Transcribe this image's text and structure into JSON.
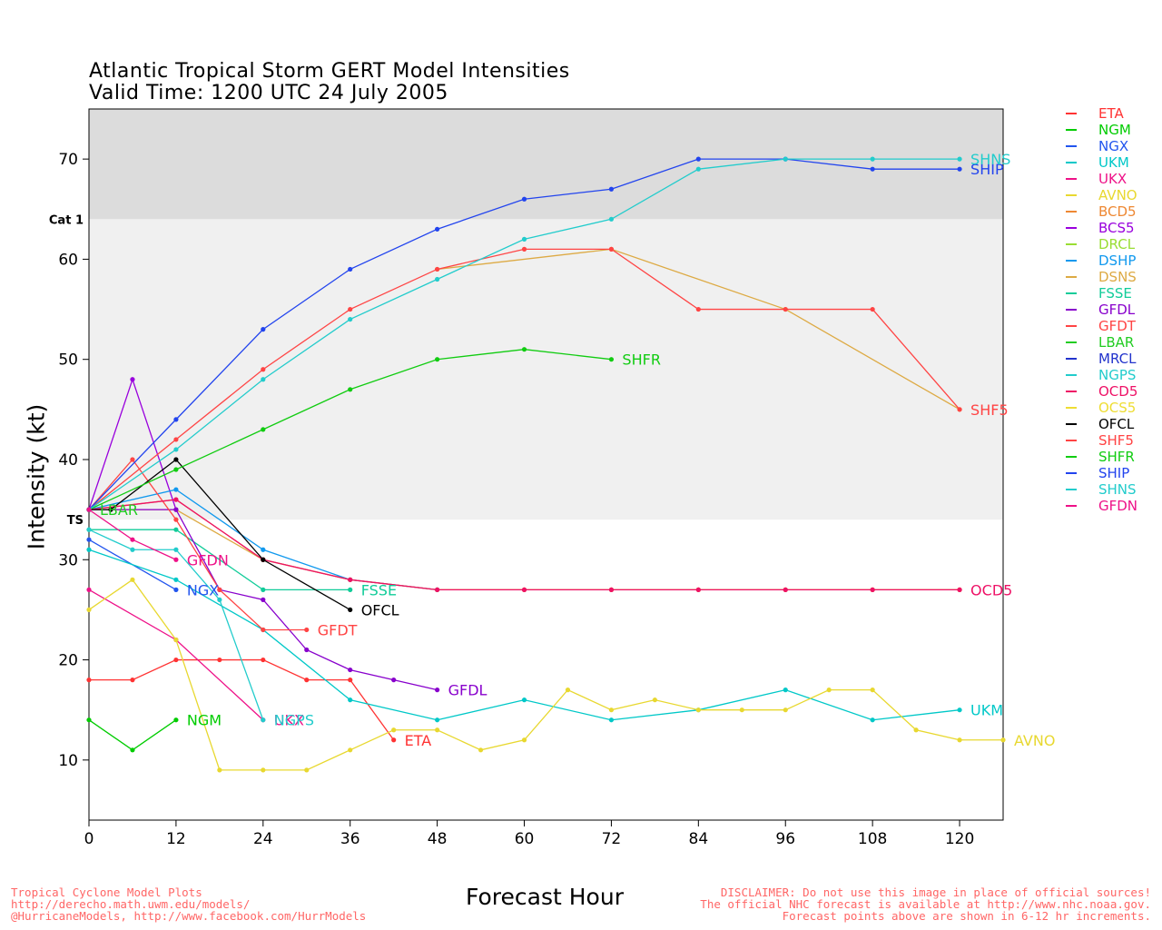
{
  "title": "Atlantic Tropical Storm GERT Model Intensities",
  "subtitle": "Valid Time: 1200 UTC 24 July 2005",
  "footer_left": [
    "Tropical Cyclone Model Plots",
    "http://derecho.math.uwm.edu/models/",
    "@HurricaneModels, http://www.facebook.com/HurrModels"
  ],
  "footer_right": [
    "DISCLAIMER: Do not use this image in place of official sources!",
    "The official NHC forecast is available at http://www.nhc.noaa.gov.",
    "Forecast points above are shown in 6-12 hr increments."
  ],
  "chart_data": {
    "type": "line",
    "xlabel": "Forecast Hour",
    "ylabel": "Intensity (kt)",
    "xlim": [
      0,
      126
    ],
    "ylim": [
      4,
      75
    ],
    "xticks": [
      0,
      12,
      24,
      36,
      48,
      60,
      72,
      84,
      96,
      108,
      120
    ],
    "yticks": [
      10,
      20,
      30,
      40,
      50,
      60,
      70
    ],
    "bands": [
      {
        "label": "TS",
        "from": 34,
        "to": 64,
        "color": "#f0f0f0"
      },
      {
        "label": "Cat 1",
        "from": 64,
        "to": 75,
        "color": "#dcdcdc"
      }
    ],
    "legend_position": "right",
    "series": [
      {
        "name": "ETA",
        "color": "#ff3333",
        "x": [
          0,
          6,
          12,
          18,
          24,
          30,
          36,
          42
        ],
        "y": [
          18,
          18,
          20,
          20,
          20,
          18,
          18,
          12
        ],
        "label": "ETA"
      },
      {
        "name": "NGM",
        "color": "#00cc00",
        "x": [
          0,
          6,
          12
        ],
        "y": [
          14,
          11,
          14
        ],
        "label": "NGM"
      },
      {
        "name": "NGX",
        "color": "#2255ee",
        "x": [
          0,
          12
        ],
        "y": [
          32,
          27
        ],
        "label": "NGX"
      },
      {
        "name": "UKM",
        "color": "#00c8c8",
        "x": [
          0,
          12,
          24,
          36,
          48,
          60,
          72,
          84,
          96,
          108,
          120
        ],
        "y": [
          31,
          28,
          23,
          16,
          14,
          16,
          14,
          15,
          17,
          14,
          15
        ],
        "label": "UKM"
      },
      {
        "name": "UKX",
        "color": "#ee1188",
        "x": [
          0,
          12,
          24
        ],
        "y": [
          27,
          22,
          14
        ],
        "label": "UKX"
      },
      {
        "name": "AVNO",
        "color": "#e8d830",
        "x": [
          0,
          6,
          12,
          18,
          24,
          30,
          36,
          42,
          48,
          54,
          60,
          66,
          72,
          78,
          84,
          90,
          96,
          102,
          108,
          114,
          120,
          126
        ],
        "y": [
          25,
          28,
          22,
          9,
          9,
          9,
          11,
          13,
          13,
          11,
          12,
          17,
          15,
          16,
          15,
          15,
          15,
          17,
          17,
          13,
          12,
          12
        ],
        "label": "AVNO"
      },
      {
        "name": "BCD5",
        "color": "#ee8833",
        "x": [
          0,
          12,
          24,
          36,
          48,
          60,
          72,
          84,
          96,
          108,
          120
        ],
        "y": [
          35,
          36,
          30,
          28,
          27,
          27,
          27,
          27,
          27,
          27,
          27
        ],
        "label": ""
      },
      {
        "name": "BCS5",
        "color": "#9900dd",
        "x": [
          0,
          6,
          12
        ],
        "y": [
          35,
          48,
          35
        ],
        "label": ""
      },
      {
        "name": "DRCL",
        "color": "#99dd33",
        "x": [],
        "y": [],
        "label": ""
      },
      {
        "name": "DSHP",
        "color": "#1199ee",
        "x": [
          0,
          12,
          24,
          36,
          48
        ],
        "y": [
          35,
          37,
          31,
          28,
          27
        ],
        "label": ""
      },
      {
        "name": "DSNS",
        "color": "#ddaa44",
        "x": [
          0,
          12,
          24,
          36,
          48,
          60,
          72,
          84,
          96,
          108,
          120
        ],
        "y": [
          35,
          35,
          30,
          28,
          27,
          27,
          27,
          27,
          27,
          27,
          27
        ],
        "label": ""
      },
      {
        "name": "FSSE",
        "color": "#11cc99",
        "x": [
          0,
          12,
          24,
          36
        ],
        "y": [
          33,
          33,
          27,
          27
        ],
        "label": "FSSE"
      },
      {
        "name": "GFDL",
        "color": "#8800cc",
        "x": [
          0,
          12,
          18,
          24,
          30,
          36,
          42,
          48
        ],
        "y": [
          35,
          35,
          27,
          26,
          21,
          19,
          18,
          17
        ],
        "label": "GFDL"
      },
      {
        "name": "GFDT",
        "color": "#ff4444",
        "x": [
          0,
          6,
          12,
          18,
          24,
          30
        ],
        "y": [
          35,
          40,
          34,
          27,
          23,
          23
        ],
        "label": "GFDT"
      },
      {
        "name": "LBAR",
        "color": "#22cc22",
        "x": [
          0
        ],
        "y": [
          35
        ],
        "label": "LBAR"
      },
      {
        "name": "MRCL",
        "color": "#2233cc",
        "x": [],
        "y": [],
        "label": ""
      },
      {
        "name": "NGPS",
        "color": "#22cccc",
        "x": [
          0,
          6,
          12,
          18,
          24
        ],
        "y": [
          33,
          31,
          31,
          26,
          14
        ],
        "label": "NGPS"
      },
      {
        "name": "OCD5",
        "color": "#ee1166",
        "x": [
          0,
          12,
          24,
          36,
          48,
          60,
          72,
          84,
          96,
          108,
          120
        ],
        "y": [
          35,
          36,
          30,
          28,
          27,
          27,
          27,
          27,
          27,
          27,
          27
        ],
        "label": "OCD5"
      },
      {
        "name": "OCS5",
        "color": "#eedd33",
        "x": [],
        "y": [],
        "label": ""
      },
      {
        "name": "OFCL",
        "color": "#000000",
        "x": [
          0,
          3,
          12,
          24,
          36
        ],
        "y": [
          35,
          35,
          40,
          30,
          25
        ],
        "label": "OFCL"
      },
      {
        "name": "SHF5",
        "color": "#ff4444",
        "x": [
          0,
          12,
          24,
          36,
          48,
          60,
          72,
          84,
          96,
          108,
          120
        ],
        "y": [
          35,
          42,
          49,
          55,
          59,
          61,
          61,
          55,
          55,
          55,
          45
        ],
        "label": "SHF5"
      },
      {
        "name": "SHFR",
        "color": "#11cc11",
        "x": [
          0,
          12,
          24,
          36,
          48,
          60,
          72
        ],
        "y": [
          35,
          39,
          43,
          47,
          50,
          51,
          50
        ],
        "label": "SHFR"
      },
      {
        "name": "SHIP",
        "color": "#2244ee",
        "x": [
          0,
          12,
          24,
          36,
          48,
          60,
          72,
          84,
          96,
          108,
          120
        ],
        "y": [
          35,
          44,
          53,
          59,
          63,
          66,
          67,
          70,
          70,
          69,
          69
        ],
        "label": "SHIP"
      },
      {
        "name": "SHNS",
        "color": "#22cccc",
        "x": [
          0,
          12,
          24,
          36,
          48,
          60,
          72,
          84,
          96,
          108,
          120
        ],
        "y": [
          35,
          41,
          48,
          54,
          58,
          62,
          64,
          69,
          70,
          70,
          70
        ],
        "label": "SHNS"
      },
      {
        "name": "GFDN",
        "color": "#ee1188",
        "x": [
          0,
          6,
          12
        ],
        "y": [
          35,
          32,
          30
        ],
        "label": "GFDN"
      }
    ],
    "extra_lines": [
      {
        "series": "DSNS",
        "color": "#ddaa44",
        "x": [
          48,
          72,
          96,
          120
        ],
        "y": [
          59,
          61,
          55,
          45
        ]
      }
    ]
  }
}
